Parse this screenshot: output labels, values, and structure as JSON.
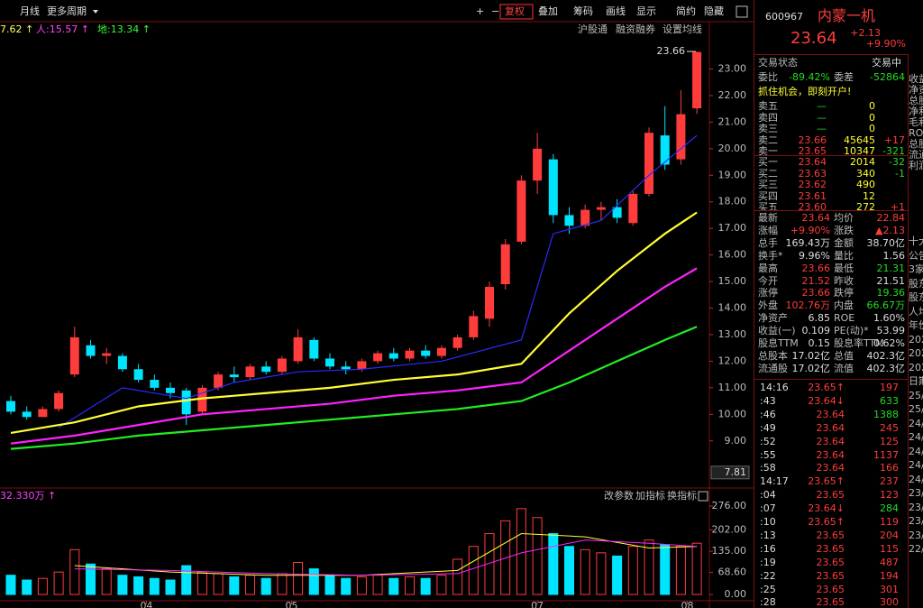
{
  "toolbar": {
    "left": [
      "月线",
      "更多周期"
    ],
    "right": [
      "+",
      "−",
      "复权",
      "叠加",
      "筹码",
      "画线",
      "显示",
      "简约",
      "隐藏"
    ]
  },
  "indicators": [
    {
      "text": "7.62 ↑",
      "color": "#ffff66"
    },
    {
      "text": "人:15.57 ↑",
      "color": "#ff44ff"
    },
    {
      "text": "地:13.34 ↑",
      "color": "#33ff33"
    }
  ],
  "chart_links": [
    "沪股通",
    "融资融券",
    "设置均线"
  ],
  "chart_data": [
    {
      "type": "candlestick",
      "up_color": "#ff3c3c",
      "down_color": "#00e5ff",
      "open": [
        10.5,
        10.1,
        9.9,
        10.2,
        11.5,
        12.6,
        12.2,
        12.2,
        11.7,
        11.3,
        11.0,
        10.9,
        10.1,
        11.0,
        11.5,
        11.4,
        11.8,
        11.6,
        12.0,
        12.8,
        12.1,
        11.8,
        11.7,
        12.0,
        12.3,
        12.1,
        12.4,
        12.2,
        12.5,
        12.9,
        13.6,
        14.9,
        16.5,
        18.8,
        19.6,
        17.5,
        17.1,
        17.7,
        17.8,
        17.2,
        18.3,
        20.5,
        19.6,
        21.52
      ],
      "high": [
        10.7,
        10.3,
        10.3,
        10.9,
        13.3,
        12.8,
        12.5,
        12.3,
        11.9,
        11.5,
        11.2,
        11.0,
        11.1,
        11.6,
        11.8,
        11.9,
        12.0,
        12.2,
        13.2,
        12.9,
        12.3,
        12.0,
        12.1,
        12.4,
        12.5,
        12.5,
        12.6,
        12.6,
        13.0,
        13.9,
        15.0,
        16.6,
        19.0,
        20.6,
        19.8,
        17.8,
        17.9,
        18.0,
        18.1,
        18.4,
        20.8,
        21.6,
        22.2,
        23.66
      ],
      "low": [
        10.0,
        9.8,
        9.9,
        10.1,
        11.4,
        12.1,
        11.9,
        11.6,
        11.2,
        10.9,
        10.6,
        9.6,
        10.0,
        10.9,
        11.2,
        11.3,
        11.5,
        11.5,
        11.9,
        12.0,
        11.7,
        11.5,
        11.6,
        11.9,
        12.0,
        12.0,
        12.1,
        12.1,
        12.4,
        12.8,
        13.3,
        14.7,
        16.4,
        18.3,
        17.2,
        16.8,
        17.0,
        17.3,
        17.2,
        17.1,
        18.2,
        19.2,
        19.4,
        21.31
      ],
      "close": [
        10.1,
        9.9,
        10.2,
        10.8,
        12.9,
        12.2,
        12.3,
        11.7,
        11.3,
        11.0,
        10.8,
        10.0,
        11.0,
        11.5,
        11.4,
        11.8,
        11.6,
        12.1,
        12.9,
        12.1,
        11.8,
        11.7,
        12.0,
        12.3,
        12.1,
        12.4,
        12.2,
        12.5,
        12.9,
        13.7,
        14.8,
        16.4,
        18.8,
        20.0,
        17.5,
        17.1,
        17.7,
        17.8,
        17.4,
        18.3,
        20.6,
        19.4,
        21.3,
        23.64
      ],
      "series": [
        {
          "color": "#2a2aff",
          "x": [
            3,
            7,
            11,
            14,
            18,
            22,
            27,
            32,
            34,
            37,
            40,
            43
          ],
          "values": [
            9.5,
            11.0,
            10.6,
            11.2,
            11.6,
            11.7,
            12.0,
            12.8,
            16.8,
            17.3,
            19.0,
            20.5
          ]
        },
        {
          "color": "#ffff33",
          "x": [
            0,
            4,
            8,
            12,
            16,
            20,
            24,
            28,
            32,
            35,
            38,
            41,
            43
          ],
          "values": [
            9.3,
            9.7,
            10.3,
            10.6,
            10.8,
            11.0,
            11.3,
            11.5,
            11.9,
            13.8,
            15.4,
            16.8,
            17.6
          ]
        },
        {
          "color": "#ff22ff",
          "x": [
            0,
            4,
            8,
            12,
            16,
            20,
            24,
            28,
            32,
            35,
            38,
            41,
            43
          ],
          "values": [
            8.9,
            9.2,
            9.6,
            10.0,
            10.2,
            10.4,
            10.7,
            10.9,
            11.2,
            12.4,
            13.6,
            14.8,
            15.5
          ]
        },
        {
          "color": "#22ee22",
          "x": [
            0,
            4,
            8,
            12,
            16,
            20,
            24,
            28,
            32,
            35,
            38,
            41,
            43
          ],
          "values": [
            8.7,
            8.9,
            9.2,
            9.4,
            9.6,
            9.8,
            10.0,
            10.2,
            10.5,
            11.2,
            12.0,
            12.8,
            13.3
          ]
        }
      ],
      "ylim": [
        7.6,
        23.9
      ],
      "yticks": [
        {
          "value": 9,
          "label": "9.00"
        },
        {
          "value": 10,
          "label": "10.00"
        },
        {
          "value": 11,
          "label": "11.00"
        },
        {
          "value": 12,
          "label": "12.00"
        },
        {
          "value": 13,
          "label": "13.00"
        },
        {
          "value": 14,
          "label": "14.00"
        },
        {
          "value": 15,
          "label": "15.00"
        },
        {
          "value": 16,
          "label": "16.00"
        },
        {
          "value": 17,
          "label": "17.00"
        },
        {
          "value": 18,
          "label": "18.00"
        },
        {
          "value": 19,
          "label": "19.00"
        },
        {
          "value": 20,
          "label": "20.00"
        },
        {
          "value": 21,
          "label": "21.00"
        },
        {
          "value": 22,
          "label": "22.00"
        },
        {
          "value": 23,
          "label": "23.00"
        }
      ],
      "xticks": [
        {
          "value": 8.5,
          "label": "04"
        },
        {
          "value": 17.6,
          "label": "05"
        },
        {
          "value": 33,
          "label": "07"
        },
        {
          "value": 42.4,
          "label": "08"
        }
      ],
      "annotations": [
        {
          "value": 23.66,
          "label": "23.66"
        },
        {
          "value": 7.81,
          "label": "7.81"
        }
      ]
    },
    {
      "type": "bar",
      "title": "32.330万 ↑",
      "values": [
        60,
        45,
        50,
        70,
        140,
        95,
        80,
        60,
        55,
        50,
        45,
        90,
        70,
        65,
        55,
        60,
        50,
        65,
        100,
        80,
        60,
        50,
        55,
        60,
        50,
        55,
        50,
        60,
        110,
        150,
        190,
        230,
        268,
        240,
        190,
        150,
        140,
        130,
        120,
        150,
        170,
        155,
        150,
        160
      ],
      "series": [
        {
          "color": "#ffff33",
          "x": [
            4,
            10,
            16,
            22,
            28,
            32,
            36,
            40,
            43
          ],
          "values": [
            90,
            70,
            60,
            60,
            75,
            190,
            180,
            145,
            150
          ]
        },
        {
          "color": "#ff22ff",
          "x": [
            4,
            10,
            16,
            22,
            28,
            32,
            36,
            40,
            43
          ],
          "values": [
            80,
            75,
            65,
            60,
            65,
            130,
            170,
            160,
            150
          ]
        }
      ],
      "ylim": [
        0,
        276
      ],
      "yticks": [
        {
          "value": 0,
          "label": "0.00"
        },
        {
          "value": 68.6,
          "label": "68.60"
        },
        {
          "value": 135,
          "label": "135.00"
        },
        {
          "value": 202,
          "label": "202.00"
        },
        {
          "value": 276,
          "label": "276.00"
        }
      ],
      "links": [
        "改参数",
        "加指标",
        "换指标"
      ]
    }
  ],
  "quote": {
    "code": "600967",
    "name": "内蒙一机",
    "price": "23.64",
    "change": "+2.13",
    "pct": "+9.90%",
    "status": [
      "交易状态",
      "交易中"
    ],
    "weibi": [
      "委比",
      "-89.42%",
      "委差",
      "-52864"
    ],
    "promo": "抓住机会，即刻开户!",
    "asks": [
      [
        "卖五",
        "—",
        "0"
      ],
      [
        "卖四",
        "—",
        "0"
      ],
      [
        "卖三",
        "—",
        "0"
      ],
      [
        "卖二",
        "23.66",
        "45645",
        "+17"
      ],
      [
        "卖一",
        "23.65",
        "10347",
        "-321"
      ]
    ],
    "bids": [
      [
        "买一",
        "23.64",
        "2014",
        "-32"
      ],
      [
        "买二",
        "23.63",
        "340",
        "-1"
      ],
      [
        "买三",
        "23.62",
        "490"
      ],
      [
        "买四",
        "23.61",
        "12"
      ],
      [
        "买五",
        "23.60",
        "272",
        "+1"
      ]
    ],
    "stats": [
      [
        "最新",
        "23.64",
        "均价",
        "22.84"
      ],
      [
        "涨幅",
        "+9.90%",
        "涨跌",
        "▲2.13"
      ],
      [
        "总手",
        "169.43万",
        "金额",
        "38.70亿"
      ],
      [
        "换手*",
        "9.96%",
        "量比",
        "1.56"
      ],
      [
        "最高",
        "23.66",
        "最低",
        "21.31"
      ],
      [
        "今开",
        "21.52",
        "昨收",
        "21.51"
      ],
      [
        "涨停",
        "23.66",
        "跌停",
        "19.36"
      ],
      [
        "外盘",
        "102.76万",
        "内盘",
        "66.67万"
      ],
      [
        "净资产",
        "6.85",
        "ROE",
        "1.60%"
      ],
      [
        "收益(一)",
        "0.109",
        "PE(动)*",
        "53.99"
      ],
      [
        "股息TTM",
        "0.15",
        "股息率TTM",
        "0.62%"
      ],
      [
        "总股本",
        "17.02亿",
        "总值",
        "402.3亿"
      ],
      [
        "流通股",
        "17.02亿",
        "流值",
        "402.3亿"
      ]
    ],
    "ticks": [
      {
        "time": "14:16",
        "price": "23.65↑",
        "volume": "197",
        "color": "#ff3c3c"
      },
      {
        "time": ":43",
        "price": "23.64↓",
        "volume": "633",
        "color": "#22dd22"
      },
      {
        "time": ":46",
        "price": "23.64",
        "volume": "1388",
        "color": "#22dd22"
      },
      {
        "time": ":49",
        "price": "23.64",
        "volume": "245",
        "color": "#ff3c3c"
      },
      {
        "time": ":52",
        "price": "23.64",
        "volume": "125",
        "color": "#ff3c3c"
      },
      {
        "time": ":55",
        "price": "23.64",
        "volume": "1137",
        "color": "#ff3c3c"
      },
      {
        "time": ":58",
        "price": "23.64",
        "volume": "166",
        "color": "#ff3c3c"
      },
      {
        "time": "14:17",
        "price": "23.65↑",
        "volume": "237",
        "color": "#ff3c3c"
      },
      {
        "time": ":04",
        "price": "23.65",
        "volume": "123",
        "color": "#ff3c3c"
      },
      {
        "time": ":07",
        "price": "23.64↓",
        "volume": "284",
        "color": "#22dd22"
      },
      {
        "time": ":10",
        "price": "23.65↑",
        "volume": "119",
        "color": "#ff3c3c"
      },
      {
        "time": ":13",
        "price": "23.65",
        "volume": "204",
        "color": "#ff3c3c"
      },
      {
        "time": ":16",
        "price": "23.65",
        "volume": "115",
        "color": "#ff3c3c"
      },
      {
        "time": ":19",
        "price": "23.65",
        "volume": "487",
        "color": "#ff3c3c"
      },
      {
        "time": ":22",
        "price": "23.65",
        "volume": "194",
        "color": "#ff3c3c"
      },
      {
        "time": ":25",
        "price": "23.65",
        "volume": "301",
        "color": "#ff3c3c"
      },
      {
        "time": ":28",
        "price": "23.65",
        "volume": "300",
        "color": "#ff3c3c"
      }
    ],
    "side": [
      "收益",
      "净资",
      "总股",
      "净利",
      "毛利",
      "ROE",
      "总股",
      "流通",
      "利润"
    ],
    "side_lower": [
      "十大",
      "公告",
      "3家",
      "股东",
      "股东",
      "人均",
      "年份",
      "202",
      "202",
      "202",
      "日期",
      "25/0",
      "25/0",
      "24/1",
      "24/1",
      "24/0",
      "24/0",
      "24/0",
      "23/1",
      "23/0",
      "23/0",
      "23/0",
      "22/1"
    ]
  }
}
